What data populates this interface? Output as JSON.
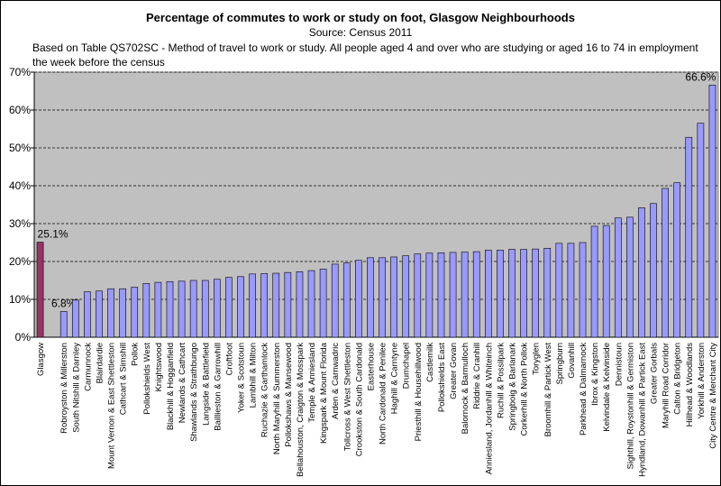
{
  "chart_data": {
    "type": "bar",
    "title": "Percentage of commutes to work or study on foot, Glasgow Neighbourhoods",
    "subtitle": "Source: Census 2011",
    "note": [
      "Based on Table QS702SC - Method of travel to work or study. All people aged 4 and over who are studying or aged 16 to 74 in employment",
      "the week before the census"
    ],
    "categories": [
      "Glasgow",
      null,
      "Robroyston & Millerston",
      "South Nitshill & Darnley",
      "Carmunnock",
      "Blairdardie",
      "Mount Vernon & East Shettleston",
      "Cathcart & Simshill",
      "Pollok",
      "Pollokshields West",
      "Knightswood",
      "Blackhill & Hogganfield",
      "Newlands & Cathcart",
      "Shawlands & Strathbungo",
      "Langside & Battlefield",
      "Baillieston & Garrowhill",
      "Croftfoot",
      "Yoker & Scotstoun",
      "Lambhill & Milton",
      "Ruchazie & Garthamlock",
      "North Maryhill & Summerston",
      "Pollokshaws & Mansewood",
      "Bellahouston, Craigton & Mosspark",
      "Temple & Anniesland",
      "Kingspark & Mount Florida",
      "Arden & Carnwadric",
      "Tollcross & West Shettleston",
      "Crookston & South Cardonald",
      "Easterhouse",
      "North Cardonald & Penilee",
      "Haghill & Carntyne",
      "Drumchapel",
      "Priesthill & Househillwood",
      "Castlemilk",
      "Pollokshields East",
      "Greater Govan",
      "Balornock & Barmulloch",
      "Riddrie & Cranhill",
      "Anniesland, Jordanhill & Whiteinch",
      "Ruchill & Possilpark",
      "Springboig & Barlanark",
      "Corkerhill & North Pollok",
      "Toryglen",
      "Broomhill & Partick West",
      "Springburn",
      "Govanhill",
      "Parkhead & Dalmarnock",
      "Ibrox & Kingston",
      "Kelvindale & Kelvinside",
      "Dennistoun",
      "Sighthill, Roystonhill & Germiston",
      "Hyndland, Dowanhill & Partick East",
      "Greater Gorbals",
      "Maryhill Road Corridor",
      "Calton & Bridgeton",
      "Hillhead & Woodlands",
      "Yorkhill & Anderston",
      "City Centre & Merchant City"
    ],
    "values": [
      25.1,
      null,
      6.8,
      9.8,
      12,
      12.2,
      12.8,
      12.8,
      13.2,
      14.2,
      14.5,
      14.7,
      14.8,
      15,
      15,
      15.3,
      15.8,
      16,
      16.7,
      16.8,
      16.9,
      17.1,
      17.3,
      17.6,
      18,
      19.3,
      19.6,
      20.3,
      21,
      21,
      21.2,
      21.5,
      22,
      22.2,
      22.3,
      22.4,
      22.5,
      22.6,
      23,
      23,
      23.2,
      23.2,
      23.3,
      23.5,
      24.8,
      24.8,
      25,
      29.3,
      29.5,
      31.5,
      31.7,
      34.2,
      35.3,
      39.3,
      40.8,
      52.8,
      56.5,
      66.6
    ],
    "value_labels": [
      "25.1%",
      null,
      "6.8%",
      null,
      null,
      null,
      null,
      null,
      null,
      null,
      null,
      null,
      null,
      null,
      null,
      null,
      null,
      null,
      null,
      null,
      null,
      null,
      null,
      null,
      null,
      null,
      null,
      null,
      null,
      null,
      null,
      null,
      null,
      null,
      null,
      null,
      null,
      null,
      null,
      null,
      null,
      null,
      null,
      null,
      null,
      null,
      null,
      null,
      null,
      null,
      null,
      null,
      null,
      null,
      null,
      null,
      null,
      "66.6%"
    ],
    "colors": [
      "#993366",
      null,
      "#9999ff",
      "#9999ff",
      "#9999ff",
      "#9999ff",
      "#9999ff",
      "#9999ff",
      "#9999ff",
      "#9999ff",
      "#9999ff",
      "#9999ff",
      "#9999ff",
      "#9999ff",
      "#9999ff",
      "#9999ff",
      "#9999ff",
      "#9999ff",
      "#9999ff",
      "#9999ff",
      "#9999ff",
      "#9999ff",
      "#9999ff",
      "#9999ff",
      "#9999ff",
      "#9999ff",
      "#9999ff",
      "#9999ff",
      "#9999ff",
      "#9999ff",
      "#9999ff",
      "#9999ff",
      "#9999ff",
      "#9999ff",
      "#9999ff",
      "#9999ff",
      "#9999ff",
      "#9999ff",
      "#9999ff",
      "#9999ff",
      "#9999ff",
      "#9999ff",
      "#9999ff",
      "#9999ff",
      "#9999ff",
      "#9999ff",
      "#9999ff",
      "#9999ff",
      "#9999ff",
      "#9999ff",
      "#9999ff",
      "#9999ff",
      "#9999ff",
      "#9999ff",
      "#9999ff",
      "#9999ff",
      "#9999ff",
      "#9999ff"
    ],
    "ylim": [
      0,
      70
    ],
    "yticks": [
      {
        "value": 0,
        "label": "0%"
      },
      {
        "value": 10,
        "label": "10%"
      },
      {
        "value": 20,
        "label": "20%"
      },
      {
        "value": 30,
        "label": "30%"
      },
      {
        "value": 40,
        "label": "40%"
      },
      {
        "value": 50,
        "label": "50%"
      },
      {
        "value": 60,
        "label": "60%"
      },
      {
        "value": 70,
        "label": "70%"
      }
    ],
    "grid": true
  }
}
